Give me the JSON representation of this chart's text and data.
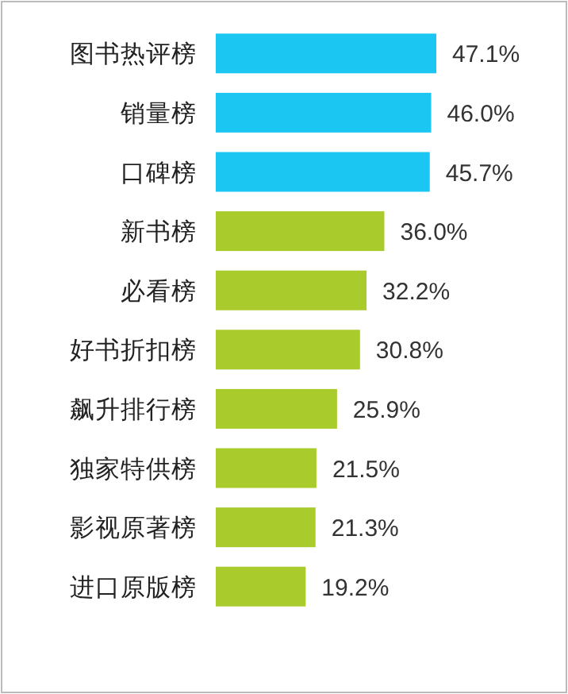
{
  "chart_data": {
    "type": "bar",
    "orientation": "horizontal",
    "categories": [
      "图书热评榜",
      "销量榜",
      "口碑榜",
      "新书榜",
      "必看榜",
      "好书折扣榜",
      "飙升排行榜",
      "独家特供榜",
      "影视原著榜",
      "进口原版榜"
    ],
    "values": [
      47.1,
      46.0,
      45.7,
      36.0,
      32.2,
      30.8,
      25.9,
      21.5,
      21.3,
      19.2
    ],
    "colors": [
      "#1cc6f2",
      "#1cc6f2",
      "#1cc6f2",
      "#a9cb2b",
      "#a9cb2b",
      "#a9cb2b",
      "#a9cb2b",
      "#a9cb2b",
      "#a9cb2b",
      "#a9cb2b"
    ],
    "value_labels": [
      "47.1%",
      "46.0%",
      "45.7%",
      "36.0%",
      "32.2%",
      "30.8%",
      "25.9%",
      "21.5%",
      "21.3%",
      "19.2%"
    ]
  }
}
